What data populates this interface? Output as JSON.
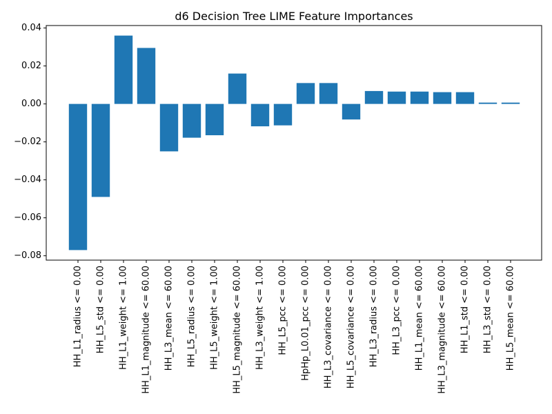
{
  "chart_data": {
    "type": "bar",
    "title": "d6 Decision Tree LIME Feature Importances",
    "xlabel": "",
    "ylabel": "",
    "categories": [
      "HH_L1_radius <= 0.00",
      "HH_L5_std <= 0.00",
      "HH_L1_weight <= 1.00",
      "HH_L1_magnitude <= 60.00",
      "HH_L3_mean <= 60.00",
      "HH_L5_radius <= 0.00",
      "HH_L5_weight <= 1.00",
      "HH_L5_magnitude <= 60.00",
      "HH_L3_weight <= 1.00",
      "HH_L5_pcc <= 0.00",
      "HpHp_L0.01_pcc <= 0.00",
      "HH_L3_covariance <= 0.00",
      "HH_L5_covariance <= 0.00",
      "HH_L3_radius <= 0.00",
      "HH_L3_pcc <= 0.00",
      "HH_L1_mean <= 60.00",
      "HH_L3_magnitude <= 60.00",
      "HH_L1_std <= 0.00",
      "HH_L3_std <= 0.00",
      "HH_L5_mean <= 60.00"
    ],
    "values": [
      -0.077,
      -0.049,
      0.036,
      0.0295,
      -0.025,
      -0.0178,
      -0.0165,
      0.016,
      -0.0118,
      -0.0113,
      0.011,
      0.011,
      -0.0082,
      0.0068,
      0.0065,
      0.0065,
      0.0062,
      0.0062,
      0.0007,
      0.0007
    ],
    "yticks": [
      "0.04",
      "0.02",
      "0.00",
      "−0.02",
      "−0.04",
      "−0.06",
      "−0.08"
    ],
    "ytick_values": [
      0.04,
      0.02,
      0.0,
      -0.02,
      -0.04,
      -0.06,
      -0.08
    ],
    "ylim": [
      -0.0823,
      0.0413
    ],
    "bar_color": "#1f77b4",
    "grid": false
  }
}
